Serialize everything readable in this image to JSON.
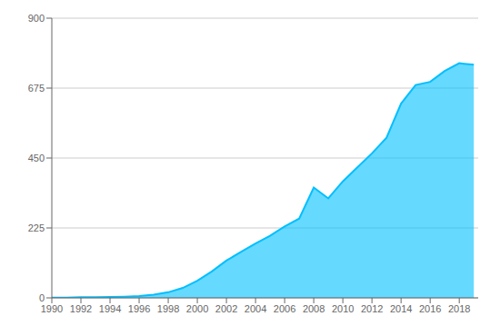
{
  "chart_data": {
    "type": "area",
    "x": [
      1990,
      1991,
      1992,
      1993,
      1994,
      1995,
      1996,
      1997,
      1998,
      1999,
      2000,
      2001,
      2002,
      2003,
      2004,
      2005,
      2006,
      2007,
      2008,
      2009,
      2010,
      2011,
      2012,
      2013,
      2014,
      2015,
      2016,
      2017,
      2018,
      2019
    ],
    "values": [
      1,
      1,
      2,
      2,
      3,
      4,
      6,
      10,
      18,
      32,
      55,
      85,
      120,
      148,
      175,
      200,
      230,
      255,
      355,
      320,
      375,
      420,
      465,
      515,
      625,
      685,
      695,
      730,
      755,
      750
    ],
    "color": "#00BFFF",
    "xlim": [
      1990,
      2019.3
    ],
    "xticks": [
      1990,
      1992,
      1994,
      1996,
      1998,
      2000,
      2002,
      2004,
      2006,
      2008,
      2010,
      2012,
      2014,
      2016,
      2018
    ],
    "ylim": [
      0,
      900
    ],
    "yticks": [
      0,
      225,
      450,
      675,
      900
    ],
    "grid": true
  }
}
